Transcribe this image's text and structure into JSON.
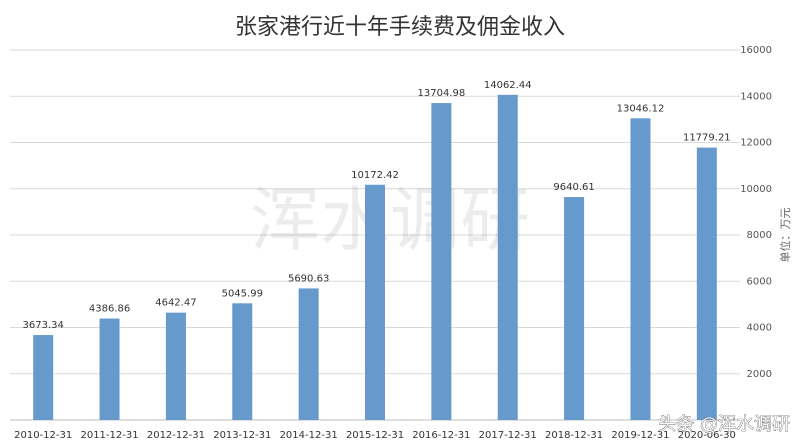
{
  "chart_data": {
    "type": "bar",
    "title": "张家港行近十年手续费及佣金收入",
    "y_axis_label": "单位：万元",
    "categories": [
      "2010-12-31",
      "2011-12-31",
      "2012-12-31",
      "2013-12-31",
      "2014-12-31",
      "2015-12-31",
      "2016-12-31",
      "2017-12-31",
      "2018-12-31",
      "2019-12-31",
      "2020-06-30"
    ],
    "values": [
      3673.34,
      4386.86,
      4642.47,
      5045.99,
      5690.63,
      10172.42,
      13704.98,
      14062.44,
      9640.61,
      13046.12,
      11779.21
    ],
    "color": "#6699cc",
    "ylim": [
      0,
      16000
    ],
    "yticks": [
      2000,
      4000,
      6000,
      8000,
      10000,
      12000,
      14000,
      16000
    ],
    "grid": true,
    "watermark": "浑水调研",
    "credit": "头条 @浑水调研"
  }
}
